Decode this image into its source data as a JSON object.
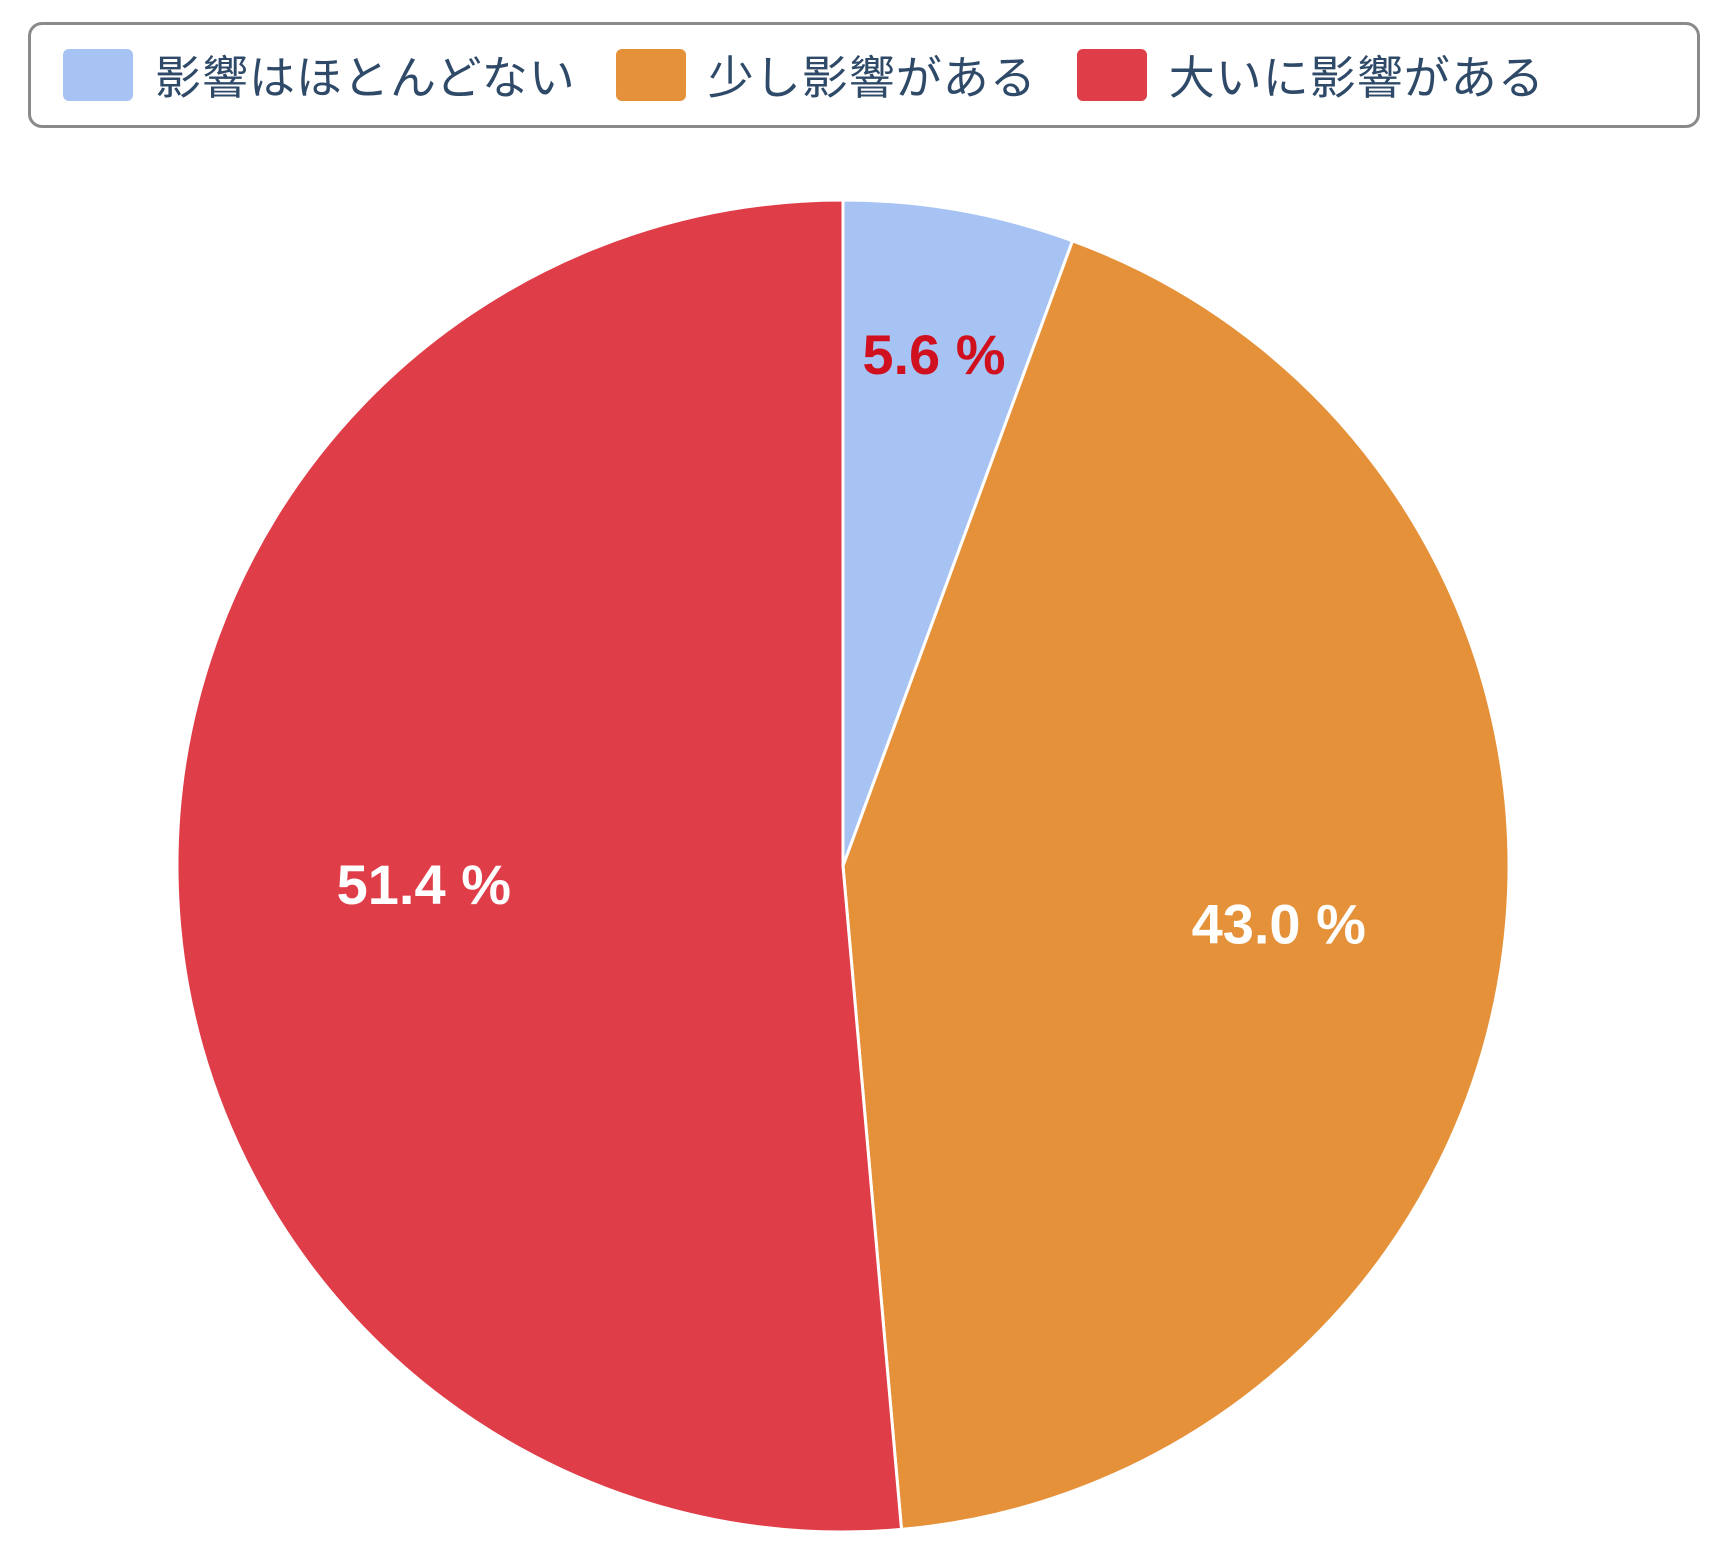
{
  "chart_data": {
    "type": "pie",
    "title": "",
    "categories": [
      "影響はほとんどない",
      "少し影響がある",
      "大いに影響がある"
    ],
    "values": [
      5.6,
      43.0,
      51.4
    ],
    "labels": [
      "5.6 %",
      "43.0 %",
      "51.4 %"
    ],
    "colors": [
      "#a6c3f3",
      "#e5913a",
      "#df3d48"
    ],
    "label_colors": [
      "#d0101e",
      "#ffffff",
      "#ffffff"
    ],
    "legend_position": "top"
  }
}
